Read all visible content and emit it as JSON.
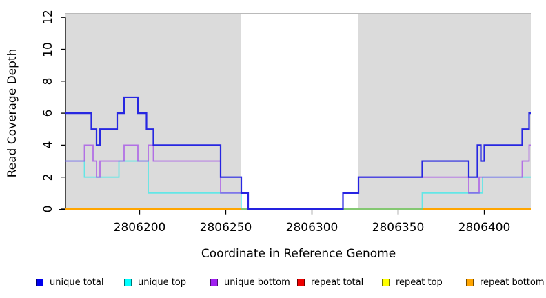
{
  "chart_data": {
    "type": "line",
    "line_style": "step",
    "title": "",
    "xlabel": "Coordinate in Reference Genome",
    "ylabel": "Read Coverage Depth",
    "xlim": [
      2806157,
      2806427
    ],
    "ylim": [
      0,
      12
    ],
    "x_ticks": [
      "2806200",
      "2806250",
      "2806300",
      "2806350",
      "2806400"
    ],
    "x_tick_values": [
      2806200,
      2806250,
      2806300,
      2806350,
      2806400
    ],
    "y_ticks": [
      "0",
      "2",
      "4",
      "6",
      "8",
      "10",
      "12"
    ],
    "y_tick_values": [
      0,
      2,
      4,
      6,
      8,
      10,
      12
    ],
    "grid": false,
    "legend_position": "bottom",
    "background_bands": {
      "color": "#DBDBDB",
      "top_border_color": "#A3A3A3",
      "regions": [
        [
          2806157,
          2806259
        ],
        [
          2806327,
          2806427
        ]
      ]
    },
    "series": [
      {
        "name": "repeat total",
        "color": "#DD0000",
        "opacity": 1,
        "width": 1.4,
        "steps": [
          [
            2806157,
            0
          ]
        ]
      },
      {
        "name": "repeat top",
        "color": "#FFFF00",
        "opacity": 1,
        "width": 1.4,
        "steps": [
          [
            2806157,
            0
          ]
        ]
      },
      {
        "name": "repeat bottom",
        "color": "#FFA500",
        "opacity": 1,
        "width": 2.2,
        "steps": [
          [
            2806157,
            0
          ]
        ]
      },
      {
        "name": "unique top",
        "color": "#00EEEE",
        "opacity": 0.55,
        "width": 1.8,
        "steps": [
          [
            2806157,
            3
          ],
          [
            2806168,
            2
          ],
          [
            2806188,
            3
          ],
          [
            2806205,
            1
          ],
          [
            2806259,
            0
          ],
          [
            2806364,
            1
          ],
          [
            2806399,
            2
          ]
        ]
      },
      {
        "name": "unique bottom",
        "color": "#9628EB",
        "opacity": 0.6,
        "width": 1.8,
        "steps": [
          [
            2806157,
            3
          ],
          [
            2806168,
            4
          ],
          [
            2806173,
            3
          ],
          [
            2806175,
            2
          ],
          [
            2806177,
            3
          ],
          [
            2806191,
            4
          ],
          [
            2806199,
            3
          ],
          [
            2806205,
            4
          ],
          [
            2806208,
            3
          ],
          [
            2806247,
            1
          ],
          [
            2806263,
            0
          ],
          [
            2806318,
            1
          ],
          [
            2806327,
            2
          ],
          [
            2806391,
            1
          ],
          [
            2806397,
            2
          ],
          [
            2806422,
            3
          ],
          [
            2806426,
            4
          ]
        ]
      },
      {
        "name": "unique total",
        "color": "#1E1EE1",
        "opacity": 0.95,
        "width": 2.2,
        "steps": [
          [
            2806157,
            6
          ],
          [
            2806172,
            5
          ],
          [
            2806175,
            4
          ],
          [
            2806177,
            5
          ],
          [
            2806187,
            6
          ],
          [
            2806191,
            7
          ],
          [
            2806199,
            6
          ],
          [
            2806204,
            5
          ],
          [
            2806208,
            4
          ],
          [
            2806247,
            2
          ],
          [
            2806259,
            1
          ],
          [
            2806263,
            0
          ],
          [
            2806318,
            1
          ],
          [
            2806327,
            2
          ],
          [
            2806364,
            3
          ],
          [
            2806391,
            2
          ],
          [
            2806396,
            4
          ],
          [
            2806398,
            3
          ],
          [
            2806400,
            4
          ],
          [
            2806422,
            5
          ],
          [
            2806426,
            6
          ]
        ]
      }
    ]
  },
  "axes": {
    "x_title": "Coordinate in Reference Genome",
    "y_title": "Read Coverage Depth"
  },
  "legend": {
    "items": [
      {
        "label": "unique total",
        "color": "#0000EE"
      },
      {
        "label": "unique top",
        "color": "#00FFFF"
      },
      {
        "label": "unique bottom",
        "color": "#A020F0"
      },
      {
        "label": "repeat total",
        "color": "#EE0000"
      },
      {
        "label": "repeat top",
        "color": "#FFFF00"
      },
      {
        "label": "repeat bottom",
        "color": "#FFA500"
      }
    ]
  }
}
